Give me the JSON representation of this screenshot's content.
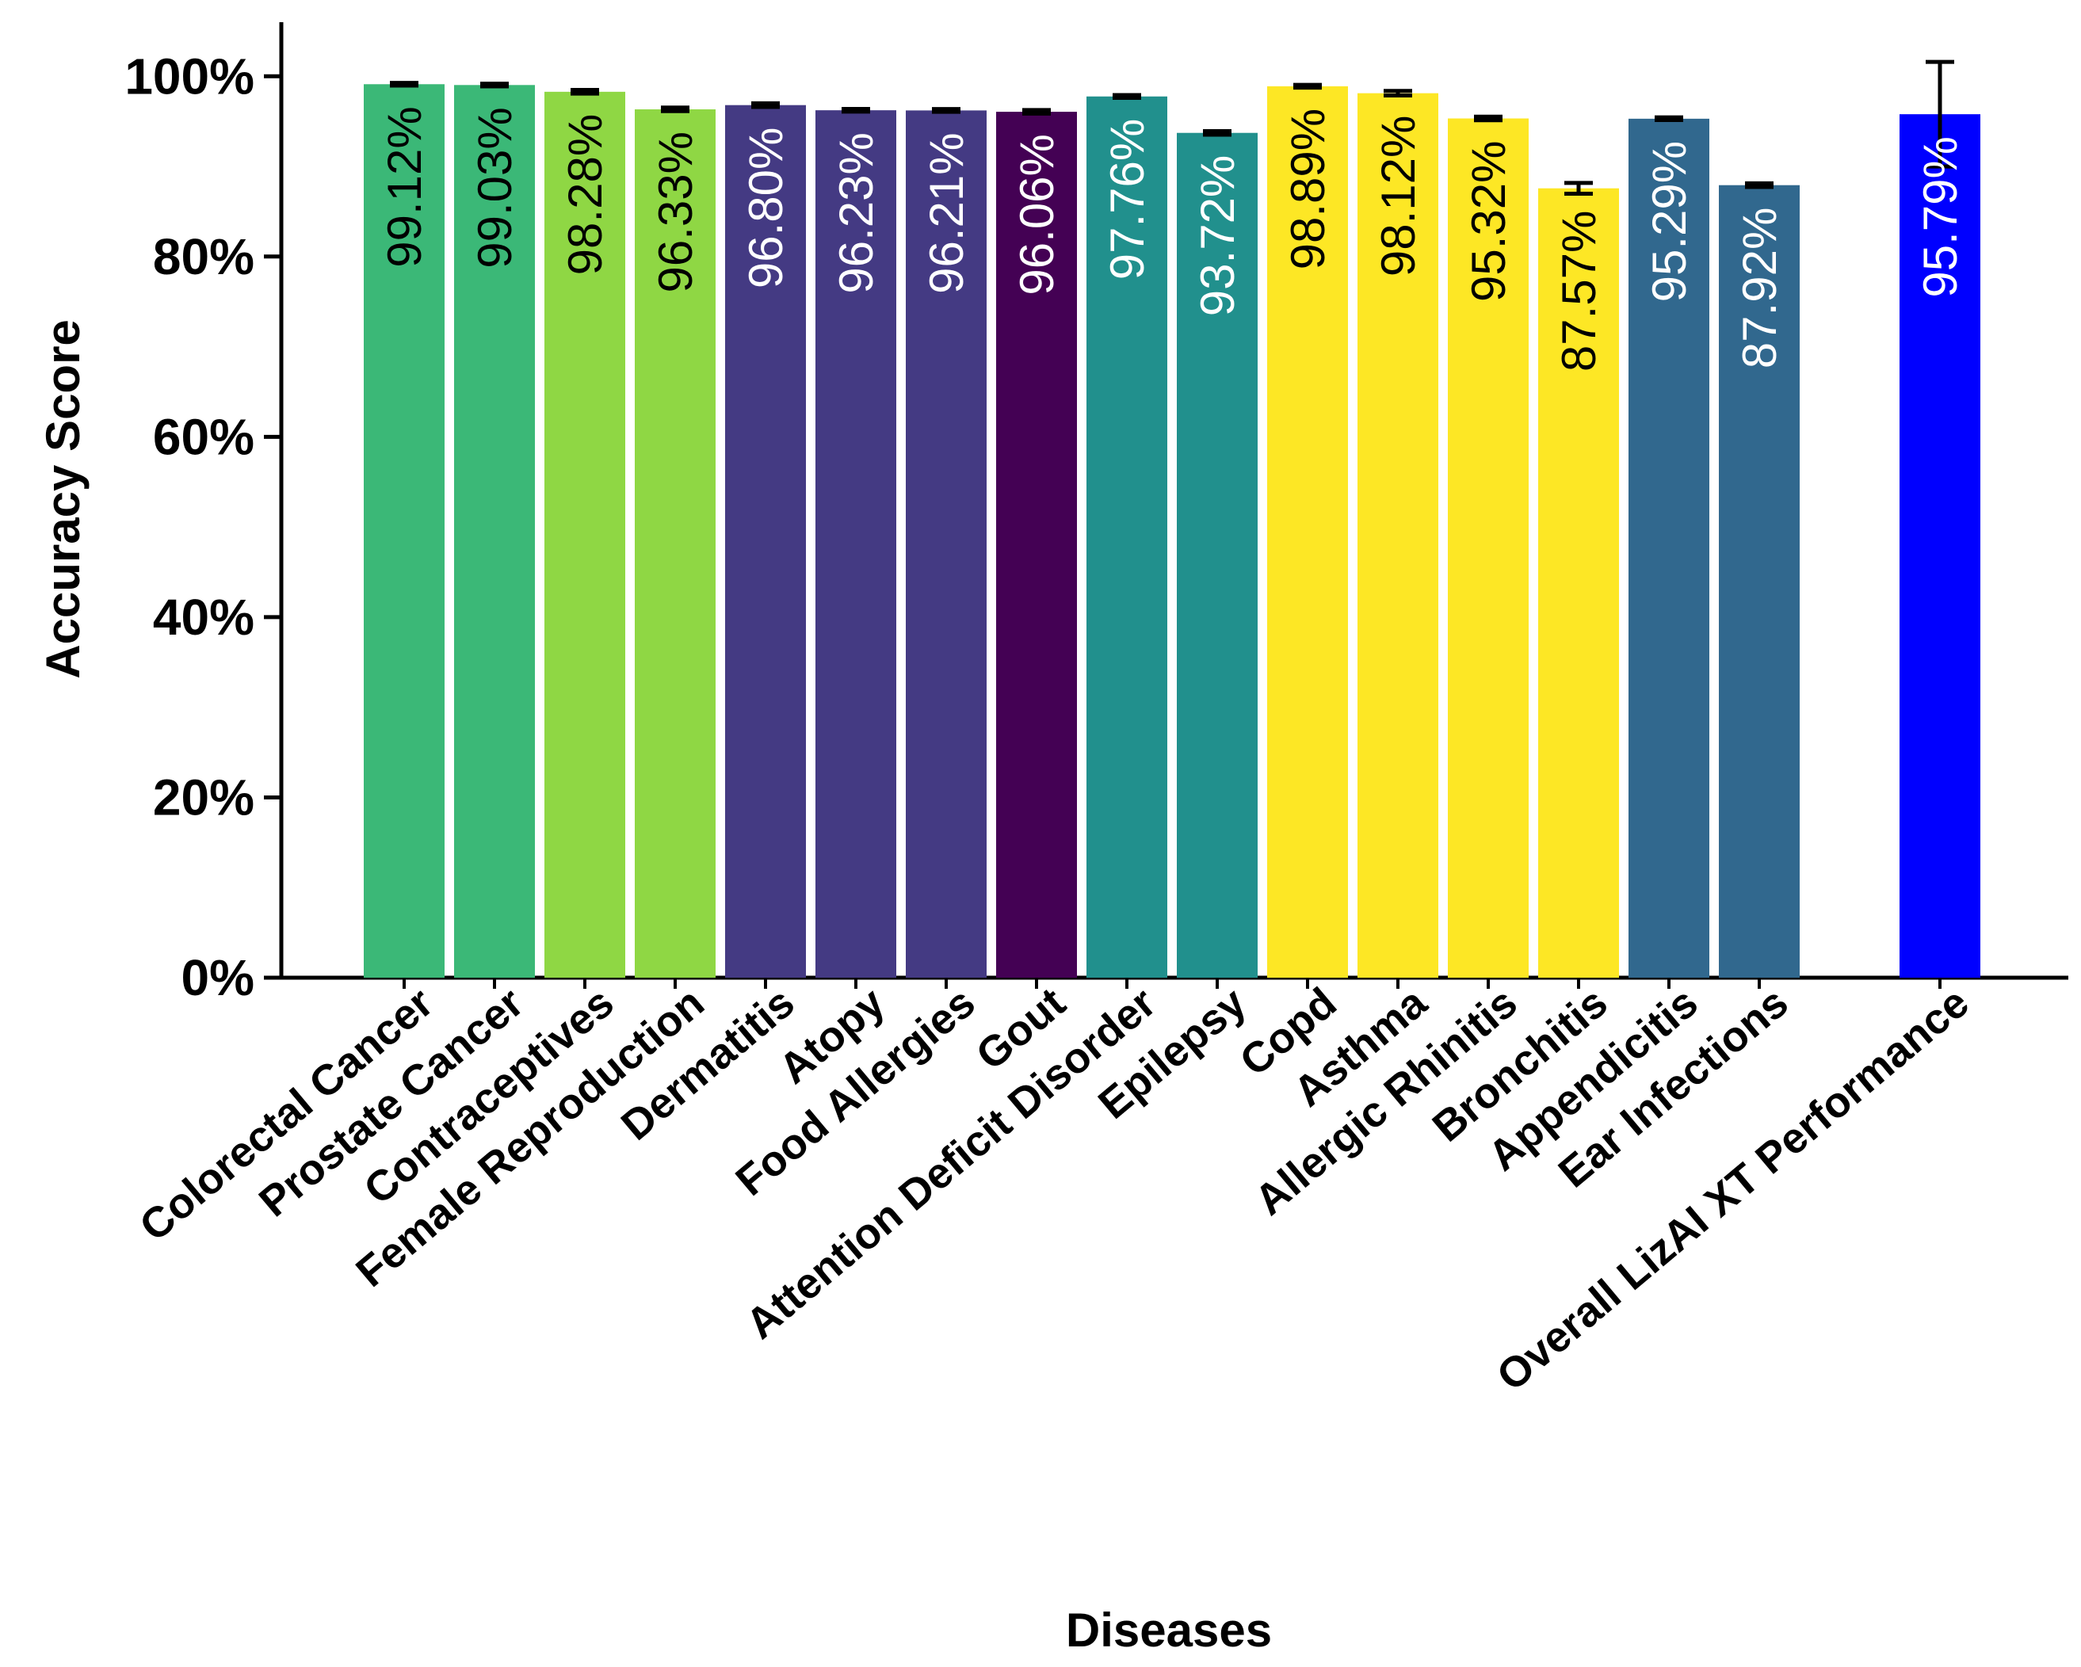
{
  "chart_data": {
    "type": "bar",
    "title": "",
    "xlabel": "Diseases",
    "ylabel": "Accuracy Score",
    "ylim": [
      0,
      106
    ],
    "yticks": [
      0,
      20,
      40,
      60,
      80,
      100
    ],
    "ytick_labels": [
      "0%",
      "20%",
      "40%",
      "60%",
      "80%",
      "100%"
    ],
    "categories": [
      "Colorectal Cancer",
      "Prostate Cancer",
      "Contraceptives",
      "Female Reproduction",
      "Dermatitis",
      "Atopy",
      "Food Allergies",
      "Gout",
      "Attention Deficit Disorder",
      "Epilepsy",
      "Copd",
      "Asthma",
      "Allergic Rhinitis",
      "Bronchitis",
      "Appendicitis",
      "Ear Infections",
      "Overall LizAI XT Performance"
    ],
    "values": [
      99.12,
      99.03,
      98.28,
      96.33,
      96.8,
      96.23,
      96.21,
      96.06,
      97.76,
      93.72,
      98.89,
      98.12,
      95.32,
      87.57,
      95.29,
      87.92,
      95.79
    ],
    "value_labels": [
      "99.12%",
      "99.03%",
      "98.28%",
      "96.33%",
      "96.80%",
      "96.23%",
      "96.21%",
      "96.06%",
      "97.76%",
      "93.72%",
      "98.89%",
      "98.12%",
      "95.32%",
      "87.57%",
      "95.29%",
      "87.92%",
      "95.79%"
    ],
    "errors": [
      0.15,
      0.15,
      0.2,
      0.2,
      0.2,
      0.15,
      0.15,
      0.2,
      0.15,
      0.2,
      0.15,
      0.25,
      0.2,
      0.6,
      0.15,
      0.2,
      5.8
    ],
    "colors": [
      "#3BB877",
      "#3BB877",
      "#8FD744",
      "#8FD744",
      "#443A83",
      "#443A83",
      "#443A83",
      "#440154",
      "#21908D",
      "#21908D",
      "#FDE725",
      "#FDE725",
      "#FDE725",
      "#FDE725",
      "#31688E",
      "#31688E",
      "#0000FF"
    ],
    "label_colors": [
      "#000000",
      "#000000",
      "#000000",
      "#000000",
      "#FFFFFF",
      "#FFFFFF",
      "#FFFFFF",
      "#FFFFFF",
      "#FFFFFF",
      "#FFFFFF",
      "#000000",
      "#000000",
      "#000000",
      "#000000",
      "#FFFFFF",
      "#FFFFFF",
      "#FFFFFF"
    ]
  }
}
